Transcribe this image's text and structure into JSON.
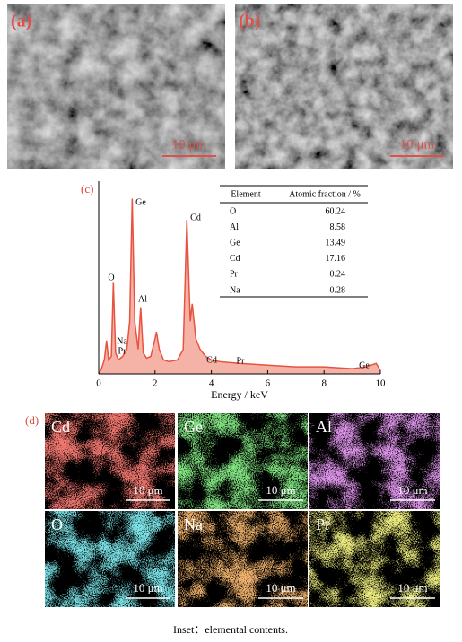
{
  "sem_panels": [
    {
      "label": "(a)",
      "scale_bar": "10 μm"
    },
    {
      "label": "(b)",
      "scale_bar": "10 μm"
    }
  ],
  "chart_data": {
    "type": "area",
    "panel_label": "(c)",
    "x_label": "Energy / keV",
    "x": [
      0,
      0.1,
      0.2,
      0.28,
      0.35,
      0.45,
      0.52,
      0.6,
      0.7,
      0.85,
      1.0,
      1.1,
      1.19,
      1.28,
      1.4,
      1.49,
      1.58,
      1.7,
      1.85,
      2.0,
      2.05,
      2.15,
      2.3,
      2.5,
      2.8,
      3.0,
      3.13,
      3.25,
      3.32,
      3.45,
      3.6,
      3.8,
      4.0,
      4.3,
      5.0,
      6.0,
      7.0,
      8.0,
      9.0,
      9.5,
      9.85,
      10
    ],
    "values": [
      0,
      3,
      8,
      19,
      8,
      10,
      52,
      12,
      8,
      10,
      14,
      30,
      100,
      30,
      14,
      38,
      12,
      9,
      10,
      20,
      24,
      14,
      8,
      7,
      8,
      14,
      88,
      30,
      40,
      20,
      14,
      10,
      8,
      7,
      6,
      5,
      4,
      4,
      3,
      4,
      6,
      2
    ],
    "color": "#e8533f",
    "fill": "#f5b3a8",
    "xlim": [
      0,
      10
    ],
    "xticks": [
      0,
      2,
      4,
      6,
      8,
      10
    ],
    "ylim": [
      0,
      110
    ],
    "peak_labels": [
      "O",
      "Na",
      "Pr",
      "Ge",
      "Al",
      "Cd",
      "Cd",
      "Pr",
      "Ge"
    ],
    "table": {
      "header": [
        "Element",
        "Atomic fraction / %"
      ],
      "rows": [
        [
          "O",
          60.24
        ],
        [
          "Al",
          8.58
        ],
        [
          "Ge",
          13.49
        ],
        [
          "Cd",
          17.16
        ],
        [
          "Pr",
          0.24
        ],
        [
          "Na",
          0.28
        ]
      ]
    }
  },
  "maps": {
    "panel_label": "(d)",
    "panels": [
      {
        "element": "Cd",
        "scale_bar": "10 μm",
        "color": "#e0302a"
      },
      {
        "element": "Ge",
        "scale_bar": "10 μm",
        "color": "#3ccf3c"
      },
      {
        "element": "Al",
        "scale_bar": "10 μm",
        "color": "#c04fd8"
      },
      {
        "element": "O",
        "scale_bar": "10 μm",
        "color": "#35c8d0"
      },
      {
        "element": "Na",
        "scale_bar": "10 μm",
        "color": "#e8792a"
      },
      {
        "element": "Pr",
        "scale_bar": "10 μm",
        "color": "#d8d838"
      }
    ]
  },
  "caption": "Inset：elemental contents."
}
